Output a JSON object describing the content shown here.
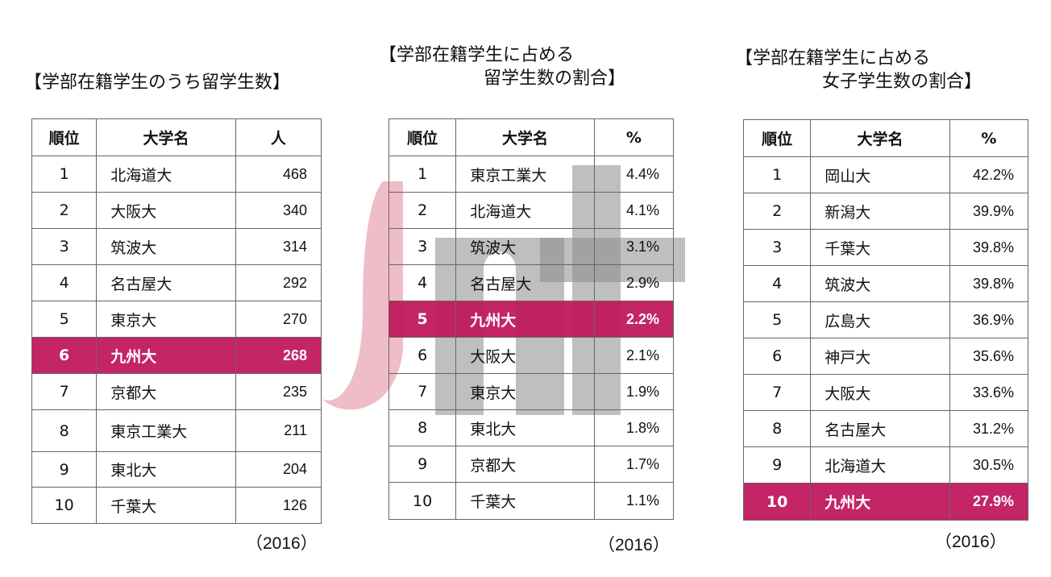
{
  "tables": [
    {
      "title_lines": [
        "【学部在籍学生のうち留学生数】"
      ],
      "headers": [
        "順位",
        "大学名",
        "人"
      ],
      "rows": [
        {
          "rank": "1",
          "name": "北海道大",
          "value": "468"
        },
        {
          "rank": "2",
          "name": "大阪大",
          "value": "340"
        },
        {
          "rank": "3",
          "name": "筑波大",
          "value": "314"
        },
        {
          "rank": "4",
          "name": "名古屋大",
          "value": "292"
        },
        {
          "rank": "5",
          "name": "東京大",
          "value": "270"
        },
        {
          "rank": "6",
          "name": "九州大",
          "value": "268",
          "highlight": true
        },
        {
          "rank": "7",
          "name": "京都大",
          "value": "235"
        },
        {
          "rank": "8",
          "name": "東京工業大",
          "value": "211"
        },
        {
          "rank": "9",
          "name": "東北大",
          "value": "204"
        },
        {
          "rank": "10",
          "name": "千葉大",
          "value": "126"
        }
      ],
      "year": "（2016）"
    },
    {
      "title_lines": [
        "【学部在籍学生に占める",
        "留学生数の割合】"
      ],
      "headers": [
        "順位",
        "大学名",
        "%"
      ],
      "rows": [
        {
          "rank": "1",
          "name": "東京工業大",
          "value": "4.4%"
        },
        {
          "rank": "2",
          "name": "北海道大",
          "value": "4.1%"
        },
        {
          "rank": "3",
          "name": "筑波大",
          "value": "3.1%"
        },
        {
          "rank": "4",
          "name": "名古屋大",
          "value": "2.9%"
        },
        {
          "rank": "5",
          "name": "九州大",
          "value": "2.2%",
          "highlight": true
        },
        {
          "rank": "6",
          "name": "大阪大",
          "value": "2.1%"
        },
        {
          "rank": "7",
          "name": "東京大",
          "value": "1.9%"
        },
        {
          "rank": "8",
          "name": "東北大",
          "value": "1.8%"
        },
        {
          "rank": "9",
          "name": "京都大",
          "value": "1.7%"
        },
        {
          "rank": "10",
          "name": "千葉大",
          "value": "1.1%"
        }
      ],
      "year": "（2016）"
    },
    {
      "title_lines": [
        "【学部在籍学生に占める",
        "女子学生数の割合】"
      ],
      "headers": [
        "順位",
        "大学名",
        "%"
      ],
      "rows": [
        {
          "rank": "1",
          "name": "岡山大",
          "value": "42.2%"
        },
        {
          "rank": "2",
          "name": "新潟大",
          "value": "39.9%"
        },
        {
          "rank": "3",
          "name": "千葉大",
          "value": "39.8%"
        },
        {
          "rank": "4",
          "name": "筑波大",
          "value": "39.8%"
        },
        {
          "rank": "5",
          "name": "広島大",
          "value": "36.9%"
        },
        {
          "rank": "6",
          "name": "神戸大",
          "value": "35.6%"
        },
        {
          "rank": "7",
          "name": "大阪大",
          "value": "33.6%"
        },
        {
          "rank": "8",
          "name": "名古屋大",
          "value": "31.2%"
        },
        {
          "rank": "9",
          "name": "北海道大",
          "value": "30.5%"
        },
        {
          "rank": "10",
          "name": "九州大",
          "value": "27.9%",
          "highlight": true
        }
      ],
      "year": "（2016）"
    }
  ],
  "colors": {
    "highlight": "#be145a",
    "watermark_red": "#e5a3b0",
    "watermark_gray": "#8c8c8c"
  }
}
